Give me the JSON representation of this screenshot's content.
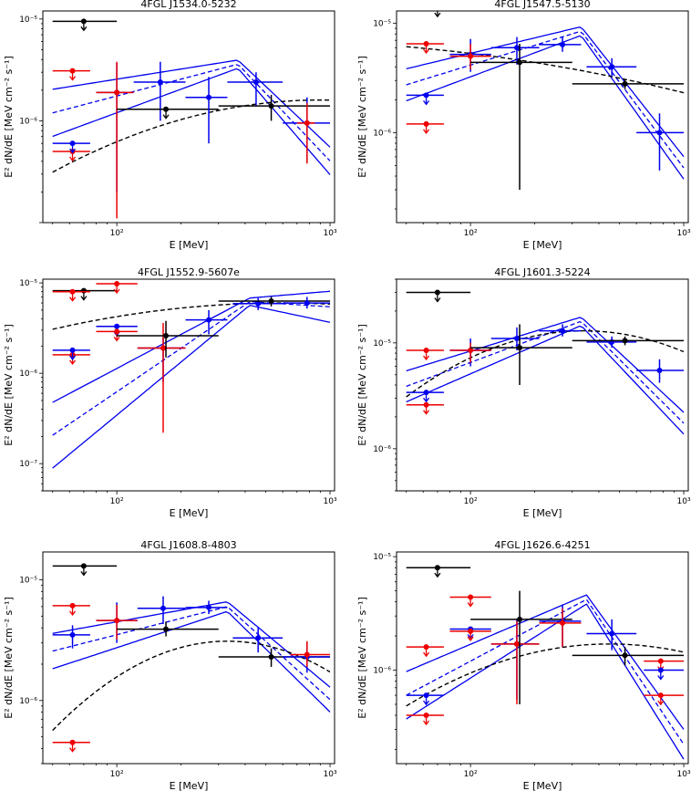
{
  "chart_data": [
    {
      "type": "scatter",
      "title": "4FGL J1534.0-5232",
      "xlabel": "E [MeV]",
      "ylabel": "E² dN/dE [MeV cm⁻² s⁻¹]",
      "xlim": [
        45,
        1050
      ],
      "ylim": [
        1e-07,
        1.2e-05
      ],
      "y_ticks": [
        "10⁻⁶",
        "10⁻⁵"
      ],
      "x_ticks": [
        "10²",
        "10³"
      ],
      "model": {
        "peak_E": 370,
        "peak_F": 3.6e-06,
        "slope_lo": 0.55,
        "slope_hi": -2.2,
        "band": 0.22
      },
      "logparabola": {
        "peak_E": 900,
        "peak_F": 1.6e-06,
        "beta": 0.45
      },
      "points": [
        {
          "color": "black",
          "E": 70,
          "F": 9.5e-06,
          "xlo": 50,
          "xhi": 100,
          "ul": true
        },
        {
          "color": "red",
          "E": 62,
          "F": 3.1e-06,
          "xlo": 50,
          "xhi": 75,
          "ul": true
        },
        {
          "color": "red",
          "E": 62,
          "F": 5e-07,
          "xlo": 50,
          "xhi": 75,
          "ul": true
        },
        {
          "color": "blue",
          "E": 62,
          "F": 6e-07,
          "xlo": 50,
          "xhi": 75,
          "ul": true
        },
        {
          "color": "blue",
          "E": 100,
          "F": 1.9e-06,
          "xlo": 80,
          "xhi": 120,
          "ylo": 2e-07,
          "yhi": 3.7e-06
        },
        {
          "color": "red",
          "E": 100,
          "F": 1.9e-06,
          "xlo": 80,
          "xhi": 120,
          "ylo": 1.1e-07,
          "yhi": 3.8e-06
        },
        {
          "color": "blue",
          "E": 160,
          "F": 2.4e-06,
          "xlo": 120,
          "xhi": 210,
          "ylo": 1e-06,
          "yhi": 3.8e-06
        },
        {
          "color": "black",
          "E": 170,
          "F": 1.3e-06,
          "xlo": 100,
          "xhi": 300,
          "ul": true
        },
        {
          "color": "blue",
          "E": 270,
          "F": 1.7e-06,
          "xlo": 210,
          "xhi": 330,
          "ylo": 6e-07,
          "yhi": 2.7e-06
        },
        {
          "color": "blue",
          "E": 450,
          "F": 2.4e-06,
          "xlo": 330,
          "xhi": 600,
          "ylo": 1.4e-06,
          "yhi": 3e-06
        },
        {
          "color": "black",
          "E": 530,
          "F": 1.4e-06,
          "xlo": 300,
          "xhi": 1000,
          "ylo": 1e-06,
          "yhi": 1.8e-06
        },
        {
          "color": "blue",
          "E": 780,
          "F": 9.5e-07,
          "xlo": 600,
          "xhi": 1000,
          "ylo": 4e-07,
          "yhi": 1.7e-06
        },
        {
          "color": "red",
          "E": 780,
          "F": 9.5e-07,
          "xlo": 700,
          "xhi": 850,
          "ylo": 3.8e-07,
          "yhi": 1.5e-06
        }
      ]
    },
    {
      "type": "scatter",
      "title": "4FGL J1547.5-5130",
      "xlabel": "E [MeV]",
      "ylabel": "E² dN/dE [MeV cm⁻² s⁻¹]",
      "xlim": [
        45,
        1050
      ],
      "ylim": [
        1.5e-07,
        1.3e-05
      ],
      "y_ticks": [
        "10⁻⁶",
        "10⁻⁵"
      ],
      "x_ticks": [
        "10²",
        "10³"
      ],
      "model": {
        "peak_E": 330,
        "peak_F": 8.5e-06,
        "slope_lo": 0.6,
        "slope_hi": -2.6,
        "band": 0.13
      },
      "logparabola": {
        "peak_E": 10,
        "peak_F": 7e-06,
        "beta": 0.12
      },
      "points": [
        {
          "color": "black",
          "E": 70,
          "F": 1.4e-05,
          "xlo": 50,
          "xhi": 100,
          "ul": true
        },
        {
          "color": "red",
          "E": 62,
          "F": 6.5e-06,
          "xlo": 50,
          "xhi": 75,
          "ul": true
        },
        {
          "color": "red",
          "E": 62,
          "F": 1.2e-06,
          "xlo": 50,
          "xhi": 75,
          "ul": true
        },
        {
          "color": "blue",
          "E": 62,
          "F": 2.2e-06,
          "xlo": 50,
          "xhi": 75,
          "ul": true
        },
        {
          "color": "blue",
          "E": 100,
          "F": 5.2e-06,
          "xlo": 80,
          "xhi": 125,
          "ylo": 3.6e-06,
          "yhi": 7.2e-06
        },
        {
          "color": "red",
          "E": 100,
          "F": 5e-06,
          "xlo": 80,
          "xhi": 125,
          "ylo": 3.8e-06,
          "yhi": 6.5e-06
        },
        {
          "color": "blue",
          "E": 165,
          "F": 6e-06,
          "xlo": 125,
          "xhi": 210,
          "ylo": 4.2e-06,
          "yhi": 7.5e-06
        },
        {
          "color": "black",
          "E": 170,
          "F": 4.4e-06,
          "xlo": 100,
          "xhi": 300,
          "ylo": 3e-07,
          "yhi": 6.5e-06
        },
        {
          "color": "blue",
          "E": 270,
          "F": 6.4e-06,
          "xlo": 210,
          "xhi": 330,
          "ylo": 5.5e-06,
          "yhi": 7.5e-06
        },
        {
          "color": "blue",
          "E": 460,
          "F": 4e-06,
          "xlo": 350,
          "xhi": 600,
          "ylo": 3.3e-06,
          "yhi": 4.8e-06
        },
        {
          "color": "black",
          "E": 530,
          "F": 2.8e-06,
          "xlo": 300,
          "xhi": 1000,
          "ylo": 2.5e-06,
          "yhi": 3.1e-06
        },
        {
          "color": "blue",
          "E": 770,
          "F": 1e-06,
          "xlo": 600,
          "xhi": 1000,
          "ylo": 4.5e-07,
          "yhi": 1.5e-06
        }
      ]
    },
    {
      "type": "scatter",
      "title": "4FGL J1552.9-5607e",
      "xlabel": "E [MeV]",
      "ylabel": "E² dN/dE [MeV cm⁻² s⁻¹]",
      "xlim": [
        45,
        1050
      ],
      "ylim": [
        5e-08,
        1.1e-05
      ],
      "y_ticks": [
        "10⁻⁷",
        "10⁻⁶",
        "10⁻⁵"
      ],
      "x_ticks": [
        "10²",
        "10³"
      ],
      "model": {
        "peak_E": 420,
        "peak_F": 6.2e-06,
        "slope_lo": 1.6,
        "slope_hi": -0.15,
        "band": 0.35
      },
      "logparabola": {
        "peak_E": 600,
        "peak_F": 6e-06,
        "beta": 0.25
      },
      "points": [
        {
          "color": "black",
          "E": 70,
          "F": 8.2e-06,
          "xlo": 50,
          "xhi": 100,
          "ul": true
        },
        {
          "color": "red",
          "E": 62,
          "F": 8e-06,
          "xlo": 50,
          "xhi": 75,
          "ul": true
        },
        {
          "color": "red",
          "E": 100,
          "F": 9.8e-06,
          "xlo": 80,
          "xhi": 125,
          "ul": true
        },
        {
          "color": "red",
          "E": 62,
          "F": 1.6e-06,
          "xlo": 50,
          "xhi": 75,
          "ul": true
        },
        {
          "color": "blue",
          "E": 62,
          "F": 1.8e-06,
          "xlo": 50,
          "xhi": 75,
          "ul": true
        },
        {
          "color": "blue",
          "E": 100,
          "F": 3.3e-06,
          "xlo": 80,
          "xhi": 125,
          "ul": true
        },
        {
          "color": "red",
          "E": 100,
          "F": 2.9e-06,
          "xlo": 80,
          "xhi": 125,
          "ul": true
        },
        {
          "color": "blue",
          "E": 165,
          "F": 1.9e-06,
          "xlo": 125,
          "xhi": 210,
          "ylo": 8e-07,
          "yhi": 2.5e-06
        },
        {
          "color": "red",
          "E": 165,
          "F": 1.9e-06,
          "xlo": 125,
          "xhi": 210,
          "ylo": 2.2e-07,
          "yhi": 3.6e-06
        },
        {
          "color": "black",
          "E": 170,
          "F": 2.6e-06,
          "xlo": 100,
          "xhi": 300,
          "ylo": 1.5e-06,
          "yhi": 3.8e-06
        },
        {
          "color": "blue",
          "E": 270,
          "F": 3.9e-06,
          "xlo": 210,
          "xhi": 330,
          "ylo": 2.7e-06,
          "yhi": 5e-06
        },
        {
          "color": "blue",
          "E": 460,
          "F": 5.9e-06,
          "xlo": 350,
          "xhi": 600,
          "ylo": 5e-06,
          "yhi": 6.8e-06
        },
        {
          "color": "black",
          "E": 530,
          "F": 6.3e-06,
          "xlo": 300,
          "xhi": 1000,
          "ylo": 5.5e-06,
          "yhi": 7e-06
        },
        {
          "color": "blue",
          "E": 780,
          "F": 6e-06,
          "xlo": 600,
          "xhi": 1000,
          "ylo": 5.2e-06,
          "yhi": 7e-06
        }
      ]
    },
    {
      "type": "scatter",
      "title": "4FGL J1601.3-5224",
      "xlabel": "E [MeV]",
      "ylabel": "E² dN/dE [MeV cm⁻² s⁻¹]",
      "xlim": [
        45,
        1050
      ],
      "ylim": [
        4e-07,
        4e-05
      ],
      "y_ticks": [
        "10⁻⁶",
        "10⁻⁵"
      ],
      "x_ticks": [
        "10²",
        "10³"
      ],
      "model": {
        "peak_E": 330,
        "peak_F": 1.6e-05,
        "slope_lo": 0.75,
        "slope_hi": -2.0,
        "band": 0.13
      },
      "logparabola": {
        "peak_E": 340,
        "peak_F": 1.3e-05,
        "beta": 0.9
      },
      "points": [
        {
          "color": "black",
          "E": 70,
          "F": 3e-05,
          "xlo": 50,
          "xhi": 100,
          "ul": true
        },
        {
          "color": "red",
          "E": 62,
          "F": 8.5e-06,
          "xlo": 50,
          "xhi": 75,
          "ul": true
        },
        {
          "color": "red",
          "E": 62,
          "F": 2.6e-06,
          "xlo": 50,
          "xhi": 75,
          "ul": true
        },
        {
          "color": "blue",
          "E": 62,
          "F": 3.4e-06,
          "xlo": 50,
          "xhi": 75,
          "ul": true
        },
        {
          "color": "blue",
          "E": 100,
          "F": 8.5e-06,
          "xlo": 80,
          "xhi": 125,
          "ylo": 6e-06,
          "yhi": 1.1e-05
        },
        {
          "color": "red",
          "E": 100,
          "F": 8.5e-06,
          "xlo": 80,
          "xhi": 125,
          "ylo": 6.5e-06,
          "yhi": 1e-05
        },
        {
          "color": "blue",
          "E": 165,
          "F": 1.1e-05,
          "xlo": 125,
          "xhi": 210,
          "ylo": 8.5e-06,
          "yhi": 1.4e-05
        },
        {
          "color": "black",
          "E": 170,
          "F": 9e-06,
          "xlo": 100,
          "xhi": 300,
          "ylo": 4e-06,
          "yhi": 1.5e-05
        },
        {
          "color": "blue",
          "E": 270,
          "F": 1.3e-05,
          "xlo": 210,
          "xhi": 330,
          "ylo": 1.15e-05,
          "yhi": 1.5e-05
        },
        {
          "color": "blue",
          "E": 460,
          "F": 1.02e-05,
          "xlo": 350,
          "xhi": 600,
          "ylo": 9e-06,
          "yhi": 1.15e-05
        },
        {
          "color": "black",
          "E": 530,
          "F": 1.05e-05,
          "xlo": 300,
          "xhi": 1000,
          "ylo": 9.5e-06,
          "yhi": 1.15e-05
        },
        {
          "color": "blue",
          "E": 770,
          "F": 5.5e-06,
          "xlo": 600,
          "xhi": 1000,
          "ylo": 4.2e-06,
          "yhi": 7e-06
        }
      ]
    },
    {
      "type": "scatter",
      "title": "4FGL J1608.8-4803",
      "xlabel": "E [MeV]",
      "ylabel": "E² dN/dE [MeV cm⁻² s⁻¹]",
      "xlim": [
        45,
        1050
      ],
      "ylim": [
        3e-07,
        1.7e-05
      ],
      "y_ticks": [
        "10⁻⁶",
        "10⁻⁵"
      ],
      "x_ticks": [
        "10²",
        "10³"
      ],
      "model": {
        "peak_E": 330,
        "peak_F": 6e-06,
        "slope_lo": 0.45,
        "slope_hi": -1.6,
        "band": 0.13
      },
      "logparabola": {
        "peak_E": 330,
        "peak_F": 3.1e-06,
        "beta": 1.1
      },
      "points": [
        {
          "color": "black",
          "E": 70,
          "F": 1.3e-05,
          "xlo": 50,
          "xhi": 100,
          "ul": true
        },
        {
          "color": "red",
          "E": 62,
          "F": 6.1e-06,
          "xlo": 50,
          "xhi": 75,
          "ul": true
        },
        {
          "color": "red",
          "E": 62,
          "F": 4.5e-07,
          "xlo": 50,
          "xhi": 75,
          "ul": true
        },
        {
          "color": "blue",
          "E": 62,
          "F": 3.5e-06,
          "xlo": 50,
          "xhi": 75,
          "ylo": 2.7e-06,
          "yhi": 4.2e-06
        },
        {
          "color": "blue",
          "E": 100,
          "F": 4.6e-06,
          "xlo": 80,
          "xhi": 125,
          "ylo": 3e-06,
          "yhi": 6.5e-06
        },
        {
          "color": "red",
          "E": 100,
          "F": 4.6e-06,
          "xlo": 80,
          "xhi": 125,
          "ylo": 3.2e-06,
          "yhi": 6.2e-06
        },
        {
          "color": "blue",
          "E": 165,
          "F": 5.8e-06,
          "xlo": 125,
          "xhi": 210,
          "ylo": 4.3e-06,
          "yhi": 7.3e-06
        },
        {
          "color": "black",
          "E": 170,
          "F": 3.9e-06,
          "xlo": 100,
          "xhi": 300,
          "ylo": 3.4e-06,
          "yhi": 4.5e-06
        },
        {
          "color": "blue",
          "E": 270,
          "F": 5.9e-06,
          "xlo": 210,
          "xhi": 330,
          "ylo": 5.2e-06,
          "yhi": 6.7e-06
        },
        {
          "color": "blue",
          "E": 460,
          "F": 3.3e-06,
          "xlo": 350,
          "xhi": 600,
          "ylo": 2.5e-06,
          "yhi": 4e-06
        },
        {
          "color": "black",
          "E": 530,
          "F": 2.3e-06,
          "xlo": 300,
          "xhi": 1000,
          "ylo": 1.9e-06,
          "yhi": 2.7e-06
        },
        {
          "color": "blue",
          "E": 780,
          "F": 2.3e-06,
          "xlo": 600,
          "xhi": 1000,
          "ylo": 1.7e-06,
          "yhi": 3e-06
        },
        {
          "color": "red",
          "E": 780,
          "F": 2.4e-06,
          "xlo": 650,
          "xhi": 1000,
          "ylo": 1.9e-06,
          "yhi": 3.1e-06
        }
      ]
    },
    {
      "type": "scatter",
      "title": "4FGL J1626.6-4251",
      "xlabel": "E [MeV]",
      "ylabel": "E² dN/dE [MeV cm⁻² s⁻¹]",
      "xlim": [
        45,
        1050
      ],
      "ylim": [
        1.5e-07,
        1.1e-05
      ],
      "y_ticks": [
        "10⁻⁶",
        "10⁻⁵"
      ],
      "x_ticks": [
        "10²",
        "10³"
      ],
      "model": {
        "peak_E": 350,
        "peak_F": 4.2e-06,
        "slope_lo": 1.0,
        "slope_hi": -2.8,
        "band": 0.2
      },
      "logparabola": {
        "peak_E": 450,
        "peak_F": 1.7e-06,
        "beta": 0.6
      },
      "points": [
        {
          "color": "black",
          "E": 70,
          "F": 8e-06,
          "xlo": 50,
          "xhi": 100,
          "ul": true
        },
        {
          "color": "red",
          "E": 100,
          "F": 4.4e-06,
          "xlo": 80,
          "xhi": 125,
          "ul": true
        },
        {
          "color": "red",
          "E": 62,
          "F": 1.6e-06,
          "xlo": 50,
          "xhi": 75,
          "ul": true
        },
        {
          "color": "red",
          "E": 62,
          "F": 4e-07,
          "xlo": 50,
          "xhi": 75,
          "ul": true
        },
        {
          "color": "blue",
          "E": 62,
          "F": 6e-07,
          "xlo": 50,
          "xhi": 75,
          "ul": true
        },
        {
          "color": "blue",
          "E": 100,
          "F": 2.3e-06,
          "xlo": 80,
          "xhi": 125,
          "ul": true
        },
        {
          "color": "red",
          "E": 100,
          "F": 2.2e-06,
          "xlo": 80,
          "xhi": 125,
          "ul": true
        },
        {
          "color": "blue",
          "E": 165,
          "F": 1.7e-06,
          "xlo": 125,
          "xhi": 210,
          "ylo": 5.5e-07,
          "yhi": 2.8e-06
        },
        {
          "color": "red",
          "E": 165,
          "F": 1.7e-06,
          "xlo": 125,
          "xhi": 210,
          "ylo": 5e-07,
          "yhi": 2.7e-06
        },
        {
          "color": "black",
          "E": 170,
          "F": 2.8e-06,
          "xlo": 100,
          "xhi": 300,
          "ylo": 5e-07,
          "yhi": 5e-06
        },
        {
          "color": "blue",
          "E": 270,
          "F": 2.7e-06,
          "xlo": 210,
          "xhi": 330,
          "ylo": 1.6e-06,
          "yhi": 3.8e-06
        },
        {
          "color": "red",
          "E": 270,
          "F": 2.6e-06,
          "xlo": 210,
          "xhi": 330,
          "ylo": 1.6e-06,
          "yhi": 3.5e-06
        },
        {
          "color": "blue",
          "E": 460,
          "F": 2.1e-06,
          "xlo": 350,
          "xhi": 600,
          "ylo": 1.5e-06,
          "yhi": 2.8e-06
        },
        {
          "color": "black",
          "E": 530,
          "F": 1.35e-06,
          "xlo": 300,
          "xhi": 1000,
          "ylo": 1.1e-06,
          "yhi": 1.6e-06
        },
        {
          "color": "red",
          "E": 780,
          "F": 1.2e-06,
          "xlo": 650,
          "xhi": 1000,
          "ul": true
        },
        {
          "color": "blue",
          "E": 780,
          "F": 1e-06,
          "xlo": 650,
          "xhi": 1000,
          "ul": true
        },
        {
          "color": "red",
          "E": 780,
          "F": 6e-07,
          "xlo": 650,
          "xhi": 1000,
          "ul": true
        }
      ]
    }
  ],
  "colors": {
    "blue": "#0000ee",
    "red": "#ee0000",
    "black": "#000000"
  }
}
